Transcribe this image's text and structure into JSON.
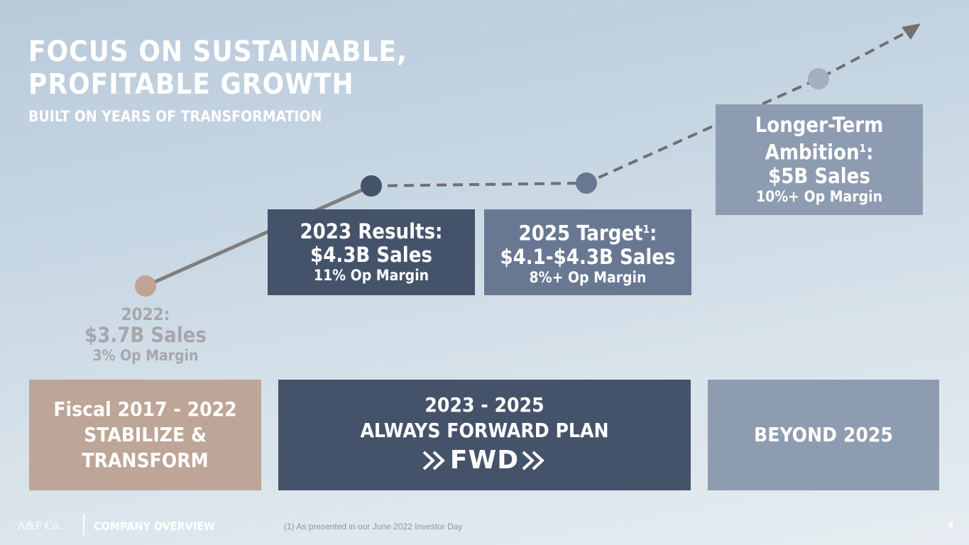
{
  "header": {
    "title_lines": [
      "FOCUS ON SUSTAINABLE,",
      "PROFITABLE GROWTH"
    ],
    "subtitle": "BUILT ON YEARS OF TRANSFORMATION"
  },
  "milestones": [
    {
      "heading": "2022:",
      "sales": "$3.7B Sales",
      "margin": "3% Op Margin"
    },
    {
      "heading": "2023 Results:",
      "sales": "$4.3B Sales",
      "margin": "11% Op Margin"
    },
    {
      "heading": "2025 Target",
      "footnote": "1",
      "suffix": ":",
      "sales": "$4.1-$4.3B Sales",
      "margin": "8%+ Op Margin"
    },
    {
      "heading_lines": [
        "Longer-Term",
        "Ambition"
      ],
      "footnote": "1",
      "suffix": ":",
      "sales": "$5B Sales",
      "margin": "10%+ Op Margin"
    }
  ],
  "phases": [
    {
      "lines": [
        "Fiscal 2017 - 2022",
        "STABILIZE &",
        "TRANSFORM"
      ]
    },
    {
      "lines": [
        "2023 - 2025",
        "ALWAYS FORWARD PLAN"
      ],
      "logo": "FWD"
    },
    {
      "lines": [
        "BEYOND 2025"
      ]
    }
  ],
  "footer": {
    "brand": "A&F Co.",
    "section": "COMPANY OVERVIEW",
    "note": "(1) As presented in our June 2022 Investor Day",
    "page": "9"
  }
}
